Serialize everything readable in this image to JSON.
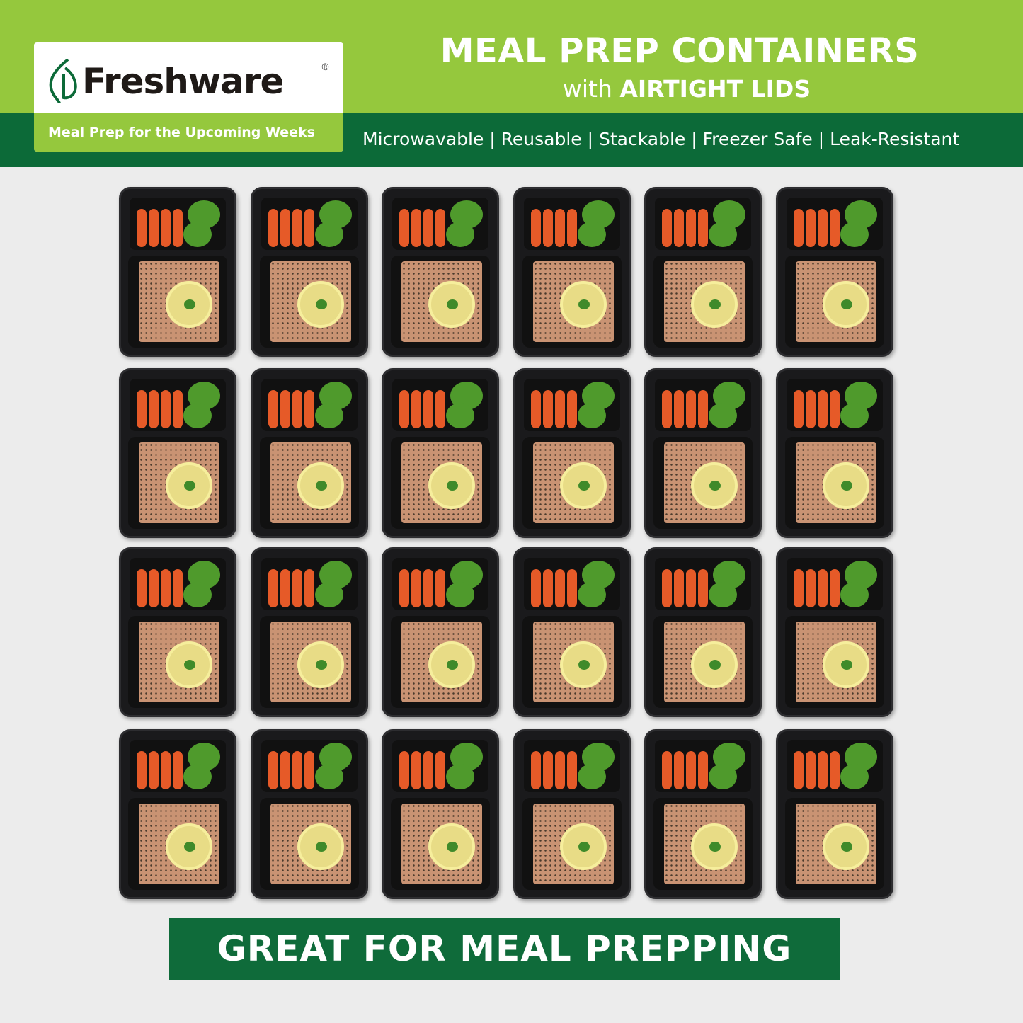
{
  "brand": {
    "name": "Freshware",
    "registered_mark": "®",
    "tagline": "Meal Prep for the Upcoming Weeks",
    "colors": {
      "light_green": "#95c83d",
      "dark_green": "#0c6a38",
      "leaf": "#0c6a38"
    }
  },
  "header": {
    "title": "MEAL PREP CONTAINERS",
    "subtitle_prefix": "with",
    "subtitle_emphasis": "AIRTIGHT LIDS",
    "features": "Microwavable | Reusable | Stackable | Freezer Safe | Leak-Resistant"
  },
  "product": {
    "container_count": 24,
    "contents": "carrots, broccoli, salmon with lemon slice"
  },
  "banner": {
    "text": "GREAT FOR MEAL PREPPING"
  }
}
